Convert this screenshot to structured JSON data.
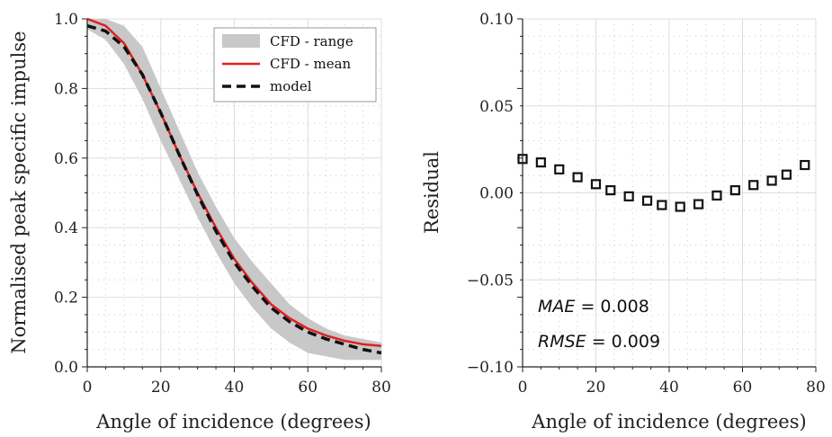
{
  "chart_data": [
    {
      "type": "line",
      "xlabel": "Angle of incidence (degrees)",
      "ylabel": "Normalised peak specific impulse",
      "xlim": [
        0,
        80
      ],
      "ylim": [
        0,
        1.0
      ],
      "xticks": [
        "0",
        "20",
        "40",
        "60",
        "80"
      ],
      "yticks": [
        "0.0",
        "0.2",
        "0.4",
        "0.6",
        "0.8",
        "1.0"
      ],
      "grid": true,
      "legend_position": "top-right",
      "legend": [
        "CFD - range",
        "CFD - mean",
        "model"
      ],
      "series": [
        {
          "name": "CFD - range",
          "kind": "band",
          "color": "#c8c8c8",
          "x": [
            0,
            5,
            10,
            15,
            20,
            25,
            30,
            35,
            40,
            45,
            50,
            55,
            60,
            65,
            70,
            75,
            80
          ],
          "lower": [
            0.97,
            0.94,
            0.87,
            0.77,
            0.65,
            0.54,
            0.43,
            0.33,
            0.24,
            0.17,
            0.11,
            0.07,
            0.04,
            0.03,
            0.02,
            0.02,
            0.02
          ],
          "upper": [
            1.0,
            1.0,
            0.98,
            0.92,
            0.8,
            0.68,
            0.56,
            0.46,
            0.37,
            0.3,
            0.24,
            0.18,
            0.14,
            0.11,
            0.09,
            0.08,
            0.07
          ]
        },
        {
          "name": "CFD - mean",
          "kind": "line",
          "color": "#e02020",
          "x": [
            0,
            5,
            10,
            15,
            20,
            25,
            30,
            35,
            40,
            45,
            50,
            55,
            60,
            65,
            70,
            75,
            80
          ],
          "y": [
            1.0,
            0.98,
            0.93,
            0.84,
            0.73,
            0.61,
            0.5,
            0.4,
            0.31,
            0.24,
            0.18,
            0.14,
            0.11,
            0.09,
            0.075,
            0.065,
            0.06
          ]
        },
        {
          "name": "model",
          "kind": "dashed",
          "color": "#111111",
          "x": [
            0,
            5,
            10,
            15,
            20,
            25,
            30,
            35,
            40,
            45,
            50,
            55,
            60,
            65,
            70,
            75,
            80
          ],
          "y": [
            0.98,
            0.965,
            0.92,
            0.84,
            0.73,
            0.61,
            0.495,
            0.39,
            0.3,
            0.23,
            0.17,
            0.13,
            0.1,
            0.08,
            0.065,
            0.05,
            0.04
          ]
        }
      ]
    },
    {
      "type": "scatter",
      "xlabel": "Angle of incidence (degrees)",
      "ylabel": "Residual",
      "xlim": [
        0,
        80
      ],
      "ylim": [
        -0.1,
        0.1
      ],
      "xticks": [
        "0",
        "20",
        "40",
        "60",
        "80"
      ],
      "yticks": [
        "−0.10",
        "−0.05",
        "0.00",
        "0.05",
        "0.10"
      ],
      "grid": true,
      "marker": "open-square",
      "x": [
        0,
        5,
        10,
        15,
        20,
        24,
        29,
        34,
        38,
        43,
        48,
        53,
        58,
        63,
        68,
        72,
        77
      ],
      "y": [
        0.0195,
        0.0175,
        0.0135,
        0.009,
        0.005,
        0.0015,
        -0.002,
        -0.0045,
        -0.007,
        -0.008,
        -0.0065,
        -0.0015,
        0.0015,
        0.0045,
        0.007,
        0.0105,
        0.016
      ],
      "annotations": [
        {
          "label": "MAE",
          "value": "0.008"
        },
        {
          "label": "RMSE",
          "value": "0.009"
        }
      ]
    }
  ]
}
